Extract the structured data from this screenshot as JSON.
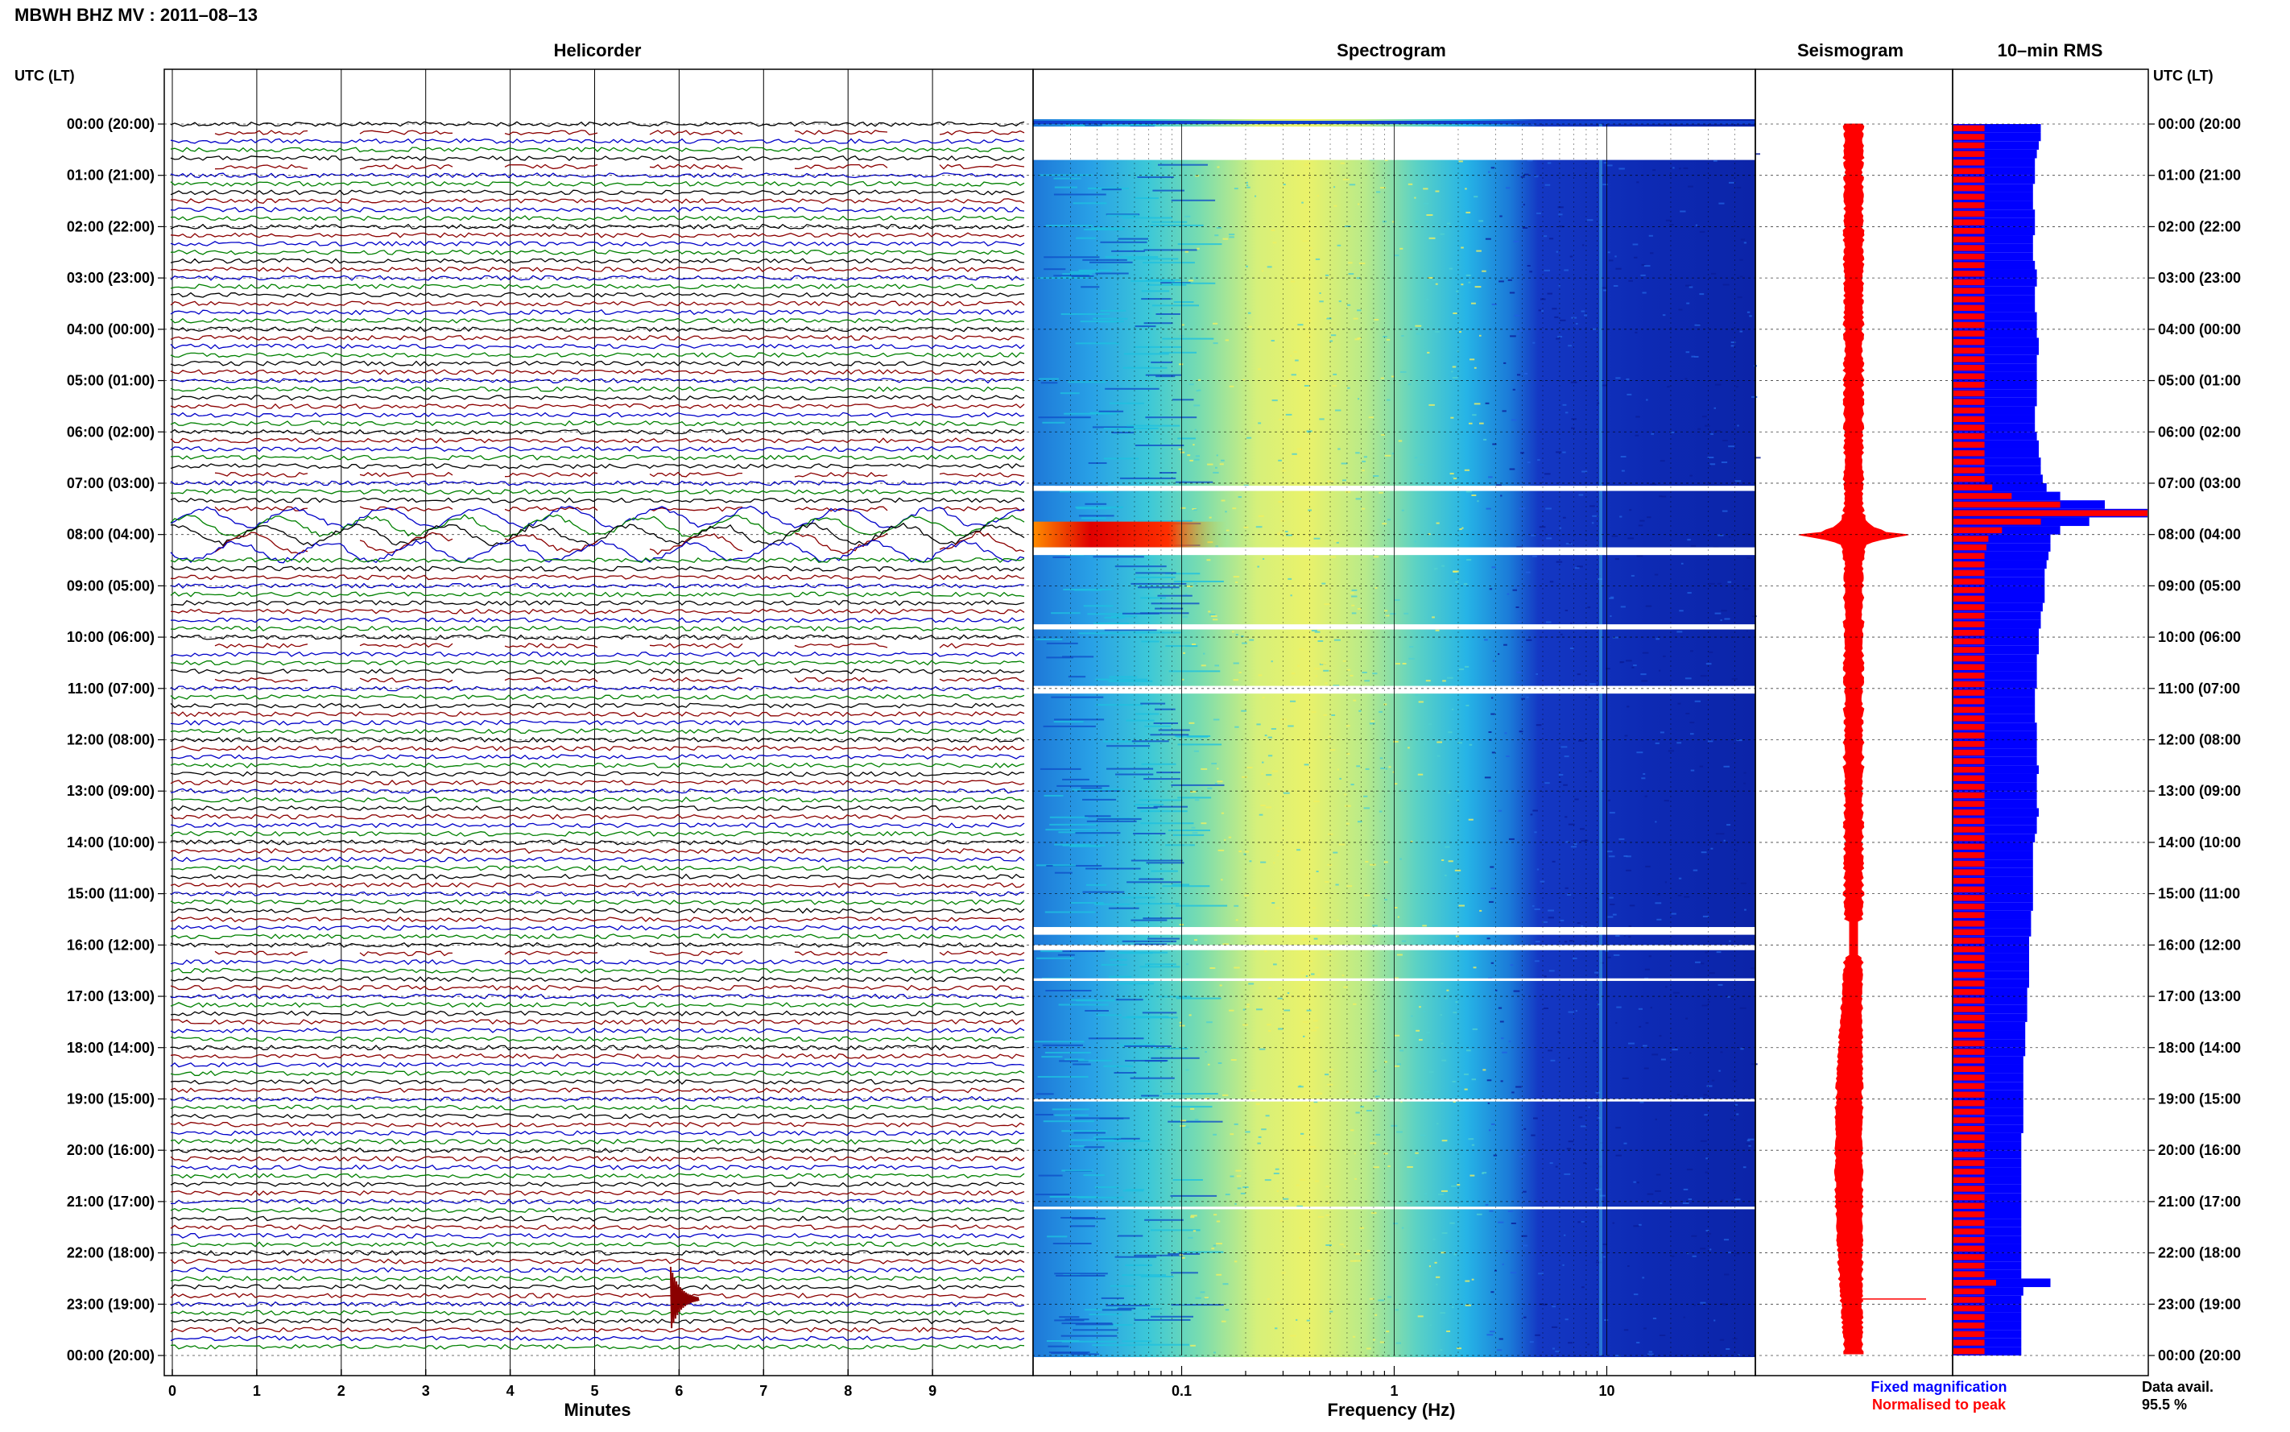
{
  "header": {
    "title": "MBWH BHZ MV : 2011–08–13",
    "left_time_header": "UTC (LT)",
    "right_time_header": "UTC (LT)"
  },
  "panels": {
    "helicorder": "Helicorder",
    "spectrogram": "Spectrogram",
    "seismogram": "Seismogram",
    "rms": "10–min RMS"
  },
  "footer": {
    "legend_fixed": "Fixed magnification",
    "legend_normalised": "Normalised to peak",
    "data_avail_label": "Data avail.",
    "data_avail_value": "95.5 %"
  },
  "colors": {
    "trace_black": "#000000",
    "trace_red": "#8b0000",
    "trace_blue": "#0000c8",
    "trace_green": "#008000",
    "seismogram": "#ff0000",
    "rms_fixed": "#0000ff",
    "rms_normalised": "#ff0000",
    "grid": "#000000"
  },
  "chart_data": [
    {
      "type": "line",
      "panel": "Helicorder",
      "xlabel": "Minutes",
      "x_ticks": [
        "0",
        "1",
        "2",
        "3",
        "4",
        "5",
        "6",
        "7",
        "8",
        "9"
      ],
      "xlim": [
        0,
        10
      ],
      "rows_per_hour": 6,
      "y_ticks_left": [
        "00:00 (20:00)",
        "01:00 (21:00)",
        "02:00 (22:00)",
        "03:00 (23:00)",
        "04:00 (00:00)",
        "05:00 (01:00)",
        "06:00 (02:00)",
        "07:00 (03:00)",
        "08:00 (04:00)",
        "09:00 (05:00)",
        "10:00 (06:00)",
        "11:00 (07:00)",
        "12:00 (08:00)",
        "13:00 (09:00)",
        "14:00 (10:00)",
        "15:00 (11:00)",
        "16:00 (12:00)",
        "17:00 (13:00)",
        "18:00 (14:00)",
        "19:00 (15:00)",
        "20:00 (16:00)",
        "21:00 (17:00)",
        "22:00 (18:00)",
        "23:00 (19:00)",
        "00:00 (20:00)"
      ],
      "events": [
        {
          "utc_hour": 8.0,
          "description": "large oscillation"
        },
        {
          "utc_hour": 22.9,
          "minute": 5.9,
          "description": "spike"
        }
      ]
    },
    {
      "type": "heatmap",
      "panel": "Spectrogram",
      "xlabel": "Frequency (Hz)",
      "x_scale": "log",
      "xlim": [
        0.02,
        50
      ],
      "x_ticks": [
        "0.1",
        "1",
        "10"
      ],
      "gaps_utc_hours": [
        [
          0.05,
          0.7
        ],
        [
          7.05,
          7.15
        ],
        [
          8.25,
          8.4
        ],
        [
          9.75,
          9.85
        ],
        [
          10.95,
          11.1
        ],
        [
          15.65,
          15.8
        ],
        [
          16.0,
          16.1
        ],
        [
          16.65,
          16.7
        ],
        [
          19.0,
          19.05
        ],
        [
          21.1,
          21.15
        ]
      ],
      "event_utc_hour": 8.0,
      "colormap": "jet"
    },
    {
      "type": "line",
      "panel": "Seismogram",
      "description": "10-min RMS amplitude waveform, red",
      "peak_utc_hour": 8.0
    },
    {
      "type": "bar",
      "panel": "10–min RMS",
      "series": [
        {
          "name": "Fixed magnification",
          "values": [
            0.45,
            0.45,
            0.44,
            0.43,
            0.42,
            0.42,
            0.42,
            0.41,
            0.41,
            0.41,
            0.42,
            0.42,
            0.42,
            0.41,
            0.41,
            0.41,
            0.42,
            0.43,
            0.43,
            0.42,
            0.42,
            0.42,
            0.43,
            0.43,
            0.43,
            0.44,
            0.44,
            0.43,
            0.43,
            0.43,
            0.43,
            0.43,
            0.43,
            0.42,
            0.42,
            0.42,
            0.43,
            0.44,
            0.44,
            0.45,
            0.45,
            0.46,
            0.48,
            0.55,
            0.78,
            1.0,
            0.7,
            0.55,
            0.5,
            0.5,
            0.49,
            0.48,
            0.47,
            0.47,
            0.47,
            0.47,
            0.46,
            0.45,
            0.45,
            0.44,
            0.44,
            0.44,
            0.43,
            0.43,
            0.43,
            0.43,
            0.42,
            0.42,
            0.42,
            0.42,
            0.43,
            0.43,
            0.43,
            0.43,
            0.43,
            0.44,
            0.43,
            0.43,
            0.43,
            0.43,
            0.44,
            0.43,
            0.43,
            0.42,
            0.41,
            0.41,
            0.41,
            0.41,
            0.41,
            0.41,
            0.41,
            0.41,
            0.4,
            0.4,
            0.4,
            0.39,
            0.39,
            0.39,
            0.39,
            0.39,
            0.39,
            0.38,
            0.38,
            0.38,
            0.38,
            0.37,
            0.37,
            0.37,
            0.37,
            0.36,
            0.36,
            0.36,
            0.36,
            0.36,
            0.36,
            0.36,
            0.36,
            0.36,
            0.35,
            0.35,
            0.35,
            0.35,
            0.35,
            0.35,
            0.35,
            0.35,
            0.35,
            0.35,
            0.35,
            0.35,
            0.35,
            0.35,
            0.35,
            0.35,
            0.35,
            0.5,
            0.36,
            0.35,
            0.35,
            0.35,
            0.35,
            0.35,
            0.35,
            0.35
          ]
        },
        {
          "name": "Normalised to peak",
          "values": [
            0.16,
            0.16,
            0.16,
            0.16,
            0.16,
            0.16,
            0.16,
            0.16,
            0.16,
            0.16,
            0.16,
            0.16,
            0.16,
            0.16,
            0.16,
            0.16,
            0.16,
            0.16,
            0.16,
            0.16,
            0.16,
            0.16,
            0.16,
            0.16,
            0.16,
            0.16,
            0.16,
            0.16,
            0.16,
            0.16,
            0.16,
            0.16,
            0.16,
            0.16,
            0.16,
            0.16,
            0.16,
            0.16,
            0.16,
            0.16,
            0.16,
            0.16,
            0.2,
            0.3,
            0.55,
            1.0,
            0.45,
            0.25,
            0.18,
            0.17,
            0.16,
            0.16,
            0.16,
            0.16,
            0.16,
            0.16,
            0.16,
            0.16,
            0.16,
            0.16,
            0.16,
            0.16,
            0.16,
            0.16,
            0.16,
            0.16,
            0.16,
            0.16,
            0.16,
            0.16,
            0.16,
            0.16,
            0.16,
            0.16,
            0.16,
            0.16,
            0.16,
            0.16,
            0.16,
            0.16,
            0.16,
            0.16,
            0.16,
            0.16,
            0.16,
            0.16,
            0.16,
            0.16,
            0.16,
            0.16,
            0.16,
            0.16,
            0.16,
            0.16,
            0.16,
            0.16,
            0.16,
            0.16,
            0.16,
            0.16,
            0.16,
            0.16,
            0.16,
            0.16,
            0.16,
            0.16,
            0.16,
            0.16,
            0.16,
            0.16,
            0.16,
            0.16,
            0.16,
            0.16,
            0.16,
            0.16,
            0.16,
            0.16,
            0.16,
            0.16,
            0.16,
            0.16,
            0.16,
            0.16,
            0.16,
            0.16,
            0.16,
            0.16,
            0.16,
            0.16,
            0.16,
            0.16,
            0.16,
            0.16,
            0.16,
            0.22,
            0.16,
            0.16,
            0.16,
            0.16,
            0.16,
            0.16,
            0.16,
            0.16
          ]
        }
      ]
    }
  ]
}
